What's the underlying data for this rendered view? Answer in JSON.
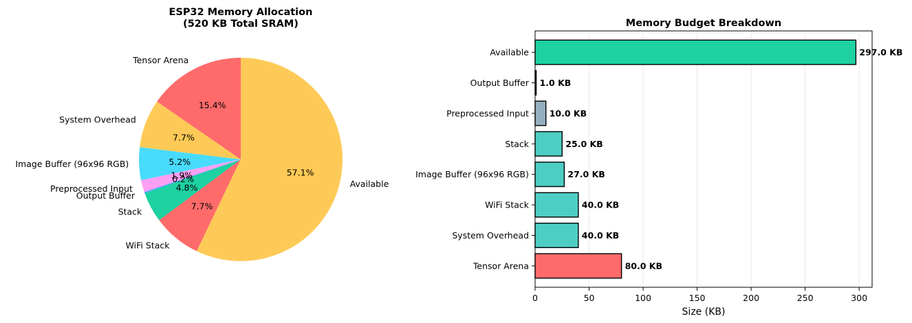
{
  "chart_data": [
    {
      "type": "pie",
      "title": "ESP32 Memory Allocation\n(520 KB Total SRAM)",
      "slices": [
        {
          "label": "Tensor Arena",
          "value": 80,
          "pct": "15.4%",
          "color": "#ff6b6b"
        },
        {
          "label": "System Overhead",
          "value": 40,
          "pct": "7.7%",
          "color": "#feca57"
        },
        {
          "label": "Image Buffer (96x96 RGB)",
          "value": 27,
          "pct": "5.2%",
          "color": "#48dbfb"
        },
        {
          "label": "Preprocessed Input",
          "value": 10,
          "pct": "1.9%",
          "color": "#ff9ff3"
        },
        {
          "label": "Output Buffer",
          "value": 1,
          "pct": "0.2%",
          "color": "#54a0ff"
        },
        {
          "label": "Stack",
          "value": 25,
          "pct": "4.8%",
          "color": "#1dd1a1"
        },
        {
          "label": "WiFi Stack",
          "value": 40,
          "pct": "7.7%",
          "color": "#ff6b6b"
        },
        {
          "label": "Available",
          "value": 297,
          "pct": "57.1%",
          "color": "#feca57"
        }
      ]
    },
    {
      "type": "bar",
      "orientation": "horizontal",
      "title": "Memory Budget Breakdown",
      "xlabel": "Size (KB)",
      "xlim": [
        0,
        312
      ],
      "xticks": [
        0,
        50,
        100,
        150,
        200,
        250,
        300
      ],
      "grid": "x",
      "categories": [
        "Tensor Arena",
        "System Overhead",
        "WiFi Stack",
        "Image Buffer (96x96 RGB)",
        "Stack",
        "Preprocessed Input",
        "Output Buffer",
        "Available"
      ],
      "values": [
        80,
        40,
        40,
        27,
        25,
        10,
        1,
        297
      ],
      "value_labels": [
        "80.0 KB",
        "40.0 KB",
        "40.0 KB",
        "27.0 KB",
        "25.0 KB",
        "10.0 KB",
        "1.0 KB",
        "297.0 KB"
      ],
      "colors": [
        "#ff6b6b",
        "#4ecdc4",
        "#4ecdc4",
        "#4ecdc4",
        "#4ecdc4",
        "#95afc0",
        "#2d3436",
        "#1dd1a1"
      ]
    }
  ]
}
